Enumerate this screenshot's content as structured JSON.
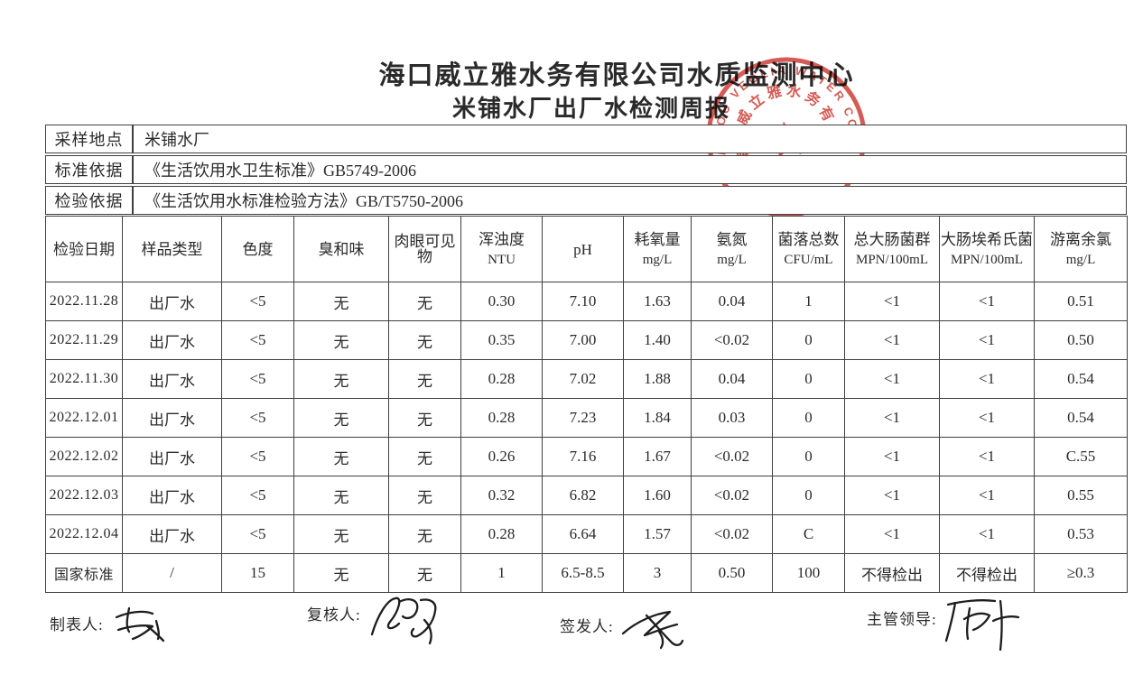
{
  "title": {
    "line1": "海口威立雅水务有限公司水质监测中心",
    "line2": "米铺水厂出厂水检测周报"
  },
  "info_rows": [
    {
      "label": "采样地点",
      "value": "米铺水厂"
    },
    {
      "label": "标准依据",
      "value": "《生活饮用水卫生标准》GB5749-2006"
    },
    {
      "label": "检验依据",
      "value": "《生活饮用水标准检验方法》GB/T5750-2006"
    }
  ],
  "table": {
    "headers": [
      {
        "name": "检验日期",
        "unit": ""
      },
      {
        "name": "样品类型",
        "unit": ""
      },
      {
        "name": "色度",
        "unit": ""
      },
      {
        "name": "臭和味",
        "unit": ""
      },
      {
        "name": "肉眼可见物",
        "unit": ""
      },
      {
        "name": "浑浊度",
        "unit": "NTU"
      },
      {
        "name": "pH",
        "unit": ""
      },
      {
        "name": "耗氧量",
        "unit": "mg/L"
      },
      {
        "name": "氨氮",
        "unit": "mg/L"
      },
      {
        "name": "菌落总数",
        "unit": "CFU/mL"
      },
      {
        "name": "总大肠菌群",
        "unit": "MPN/100mL"
      },
      {
        "name": "大肠埃希氏菌",
        "unit": "MPN/100mL"
      },
      {
        "name": "游离余氯",
        "unit": "mg/L"
      }
    ],
    "rows": [
      [
        "2022.11.28",
        "出厂水",
        "<5",
        "无",
        "无",
        "0.30",
        "7.10",
        "1.63",
        "0.04",
        "1",
        "<1",
        "<1",
        "0.51"
      ],
      [
        "2022.11.29",
        "出厂水",
        "<5",
        "无",
        "无",
        "0.35",
        "7.00",
        "1.40",
        "<0.02",
        "0",
        "<1",
        "<1",
        "0.50"
      ],
      [
        "2022.11.30",
        "出厂水",
        "<5",
        "无",
        "无",
        "0.28",
        "7.02",
        "1.88",
        "0.04",
        "0",
        "<1",
        "<1",
        "0.54"
      ],
      [
        "2022.12.01",
        "出厂水",
        "<5",
        "无",
        "无",
        "0.28",
        "7.23",
        "1.84",
        "0.03",
        "0",
        "<1",
        "<1",
        "0.54"
      ],
      [
        "2022.12.02",
        "出厂水",
        "<5",
        "无",
        "无",
        "0.26",
        "7.16",
        "1.67",
        "<0.02",
        "0",
        "<1",
        "<1",
        "C.55"
      ],
      [
        "2022.12.03",
        "出厂水",
        "<5",
        "无",
        "无",
        "0.32",
        "6.82",
        "1.60",
        "<0.02",
        "0",
        "<1",
        "<1",
        "0.55"
      ],
      [
        "2022.12.04",
        "出厂水",
        "<5",
        "无",
        "无",
        "0.28",
        "6.64",
        "1.57",
        "<0.02",
        "C",
        "<1",
        "<1",
        "0.53"
      ],
      [
        "国家标准",
        "/",
        "15",
        "无",
        "无",
        "1",
        "6.5-8.5",
        "3",
        "0.50",
        "100",
        "不得检出",
        "不得检出",
        "≥0.3"
      ]
    ]
  },
  "footer": {
    "preparer_label": "制表人:",
    "reviewer_label": "复核人:",
    "issuer_label": "签发人:",
    "supervisor_label": "主管领导:"
  },
  "stamp": {
    "english_text": "HAIKOU VEOLIA WATER CO., LTD",
    "chinese_text": "海口威立雅水务有限公司",
    "star_marker": "*",
    "color": "#cf453e"
  }
}
